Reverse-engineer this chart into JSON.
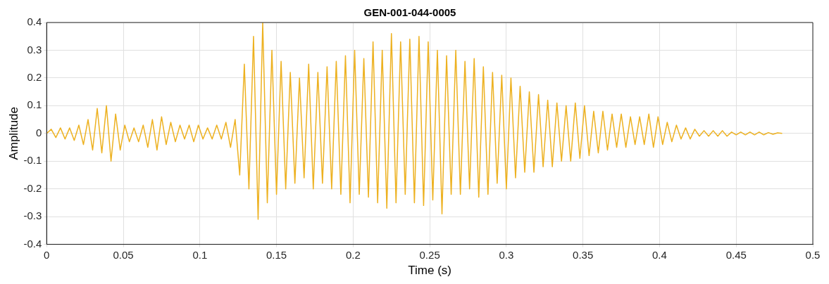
{
  "chart_data": {
    "type": "line",
    "title": "GEN-001-044-0005",
    "xlabel": "Time (s)",
    "ylabel": "Amplitude",
    "xlim": [
      0,
      0.5
    ],
    "xticks": [
      0,
      0.05,
      0.1,
      0.15,
      0.2,
      0.25,
      0.3,
      0.35,
      0.4,
      0.45,
      0.5
    ],
    "ylim": [
      -0.4,
      0.4
    ],
    "yticks": [
      -0.4,
      -0.3,
      -0.2,
      -0.1,
      0,
      0.1,
      0.2,
      0.3,
      0.4
    ],
    "grid": true,
    "legend": false,
    "marker": "none",
    "line_style": "solid",
    "x": [
      0,
      0.003,
      0.006,
      0.009,
      0.012,
      0.015,
      0.018,
      0.021,
      0.024,
      0.027,
      0.03,
      0.033,
      0.036,
      0.039,
      0.042,
      0.045,
      0.048,
      0.051,
      0.054,
      0.057,
      0.06,
      0.063,
      0.066,
      0.069,
      0.072,
      0.075,
      0.078,
      0.081,
      0.084,
      0.087,
      0.09,
      0.093,
      0.096,
      0.099,
      0.102,
      0.105,
      0.108,
      0.111,
      0.114,
      0.117,
      0.12,
      0.123,
      0.126,
      0.129,
      0.132,
      0.135,
      0.138,
      0.141,
      0.144,
      0.147,
      0.15,
      0.153,
      0.156,
      0.159,
      0.162,
      0.165,
      0.168,
      0.171,
      0.174,
      0.177,
      0.18,
      0.183,
      0.186,
      0.189,
      0.192,
      0.195,
      0.198,
      0.201,
      0.204,
      0.207,
      0.21,
      0.213,
      0.216,
      0.219,
      0.222,
      0.225,
      0.228,
      0.231,
      0.234,
      0.237,
      0.24,
      0.243,
      0.246,
      0.249,
      0.252,
      0.255,
      0.258,
      0.261,
      0.264,
      0.267,
      0.27,
      0.273,
      0.276,
      0.279,
      0.282,
      0.285,
      0.288,
      0.291,
      0.294,
      0.297,
      0.3,
      0.303,
      0.306,
      0.309,
      0.312,
      0.315,
      0.318,
      0.321,
      0.324,
      0.327,
      0.33,
      0.333,
      0.336,
      0.339,
      0.342,
      0.345,
      0.348,
      0.351,
      0.354,
      0.357,
      0.36,
      0.363,
      0.366,
      0.369,
      0.372,
      0.375,
      0.378,
      0.381,
      0.384,
      0.387,
      0.39,
      0.393,
      0.396,
      0.399,
      0.402,
      0.405,
      0.408,
      0.411,
      0.414,
      0.417,
      0.42,
      0.423,
      0.426,
      0.429,
      0.432,
      0.435,
      0.438,
      0.441,
      0.444,
      0.447,
      0.45,
      0.453,
      0.456,
      0.459,
      0.462,
      0.465,
      0.468,
      0.471,
      0.474,
      0.477,
      0.48
    ],
    "series": [
      {
        "color": "#edb120",
        "values": [
          0,
          0.015,
          -0.015,
          0.02,
          -0.02,
          0.02,
          -0.025,
          0.03,
          -0.04,
          0.05,
          -0.06,
          0.09,
          -0.07,
          0.1,
          -0.1,
          0.07,
          -0.06,
          0.03,
          -0.03,
          0.02,
          -0.03,
          0.03,
          -0.05,
          0.05,
          -0.06,
          0.06,
          -0.04,
          0.04,
          -0.03,
          0.03,
          -0.02,
          0.03,
          -0.03,
          0.03,
          -0.02,
          0.02,
          -0.02,
          0.03,
          -0.02,
          0.04,
          -0.05,
          0.05,
          -0.15,
          0.25,
          -0.2,
          0.35,
          -0.31,
          0.4,
          -0.25,
          0.3,
          -0.22,
          0.26,
          -0.2,
          0.22,
          -0.18,
          0.2,
          -0.16,
          0.25,
          -0.2,
          0.22,
          -0.18,
          0.24,
          -0.2,
          0.26,
          -0.22,
          0.28,
          -0.25,
          0.3,
          -0.22,
          0.27,
          -0.23,
          0.33,
          -0.25,
          0.3,
          -0.27,
          0.36,
          -0.25,
          0.33,
          -0.22,
          0.34,
          -0.25,
          0.35,
          -0.26,
          0.33,
          -0.24,
          0.3,
          -0.29,
          0.28,
          -0.22,
          0.3,
          -0.22,
          0.26,
          -0.2,
          0.27,
          -0.23,
          0.24,
          -0.22,
          0.22,
          -0.18,
          0.21,
          -0.2,
          0.2,
          -0.16,
          0.17,
          -0.14,
          0.15,
          -0.14,
          0.14,
          -0.12,
          0.12,
          -0.12,
          0.11,
          -0.1,
          0.1,
          -0.1,
          0.11,
          -0.09,
          0.1,
          -0.08,
          0.08,
          -0.07,
          0.08,
          -0.06,
          0.07,
          -0.05,
          0.07,
          -0.05,
          0.06,
          -0.04,
          0.06,
          -0.04,
          0.07,
          -0.05,
          0.06,
          -0.04,
          0.04,
          -0.03,
          0.03,
          -0.02,
          0.02,
          -0.02,
          0.015,
          -0.01,
          0.01,
          -0.01,
          0.01,
          -0.01,
          0.01,
          -0.01,
          0.005,
          -0.005,
          0.005,
          -0.005,
          0.005,
          -0.005,
          0.005,
          -0.005,
          0.003,
          -0.003,
          0.002,
          0
        ]
      }
    ]
  }
}
